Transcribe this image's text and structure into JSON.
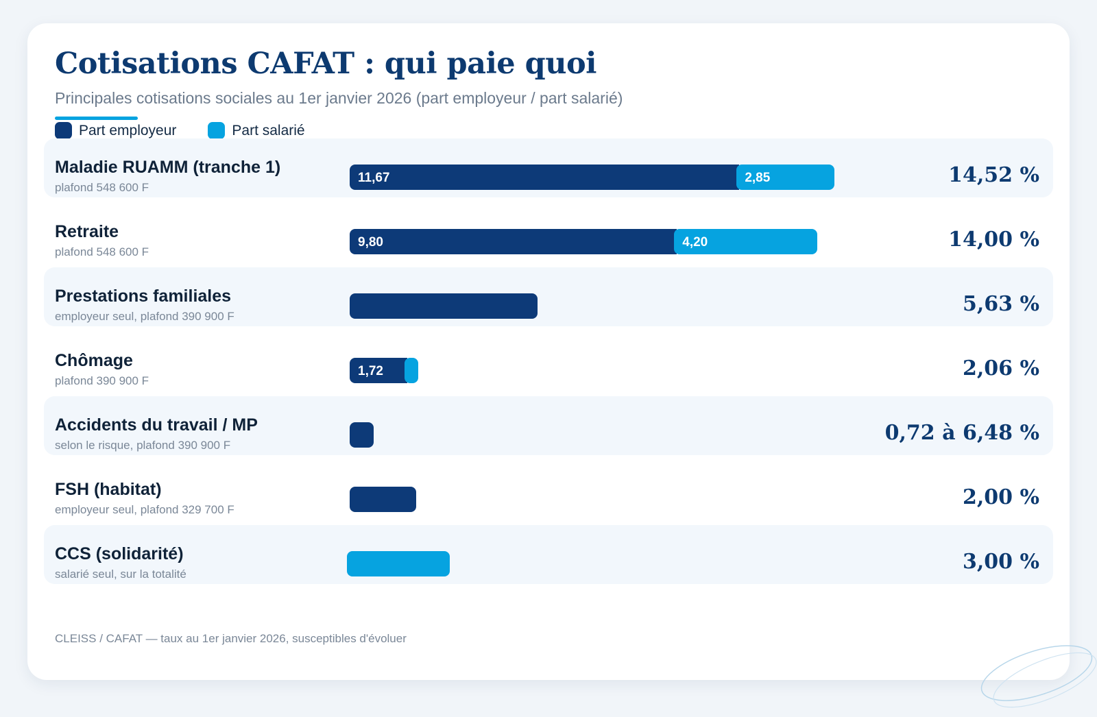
{
  "title": "Cotisations CAFAT : qui paie quoi",
  "subtitle": "Principales cotisations sociales au 1er janvier 2026 (part employeur / part salarié)",
  "legend": [
    {
      "label": "Part employeur",
      "color": "#0d3a78"
    },
    {
      "label": "Part salarié",
      "color": "#06a3e0"
    }
  ],
  "colors": {
    "employer": "#0d3a78",
    "employee": "#06a3e0",
    "title": "#0d3a70"
  },
  "chart_data": {
    "type": "bar",
    "orientation": "horizontal",
    "stacked": true,
    "legend": "top-left",
    "unit": "%",
    "categories": [
      "Maladie RUAMM (tranche 1)",
      "Retraite",
      "Prestations familiales",
      "Chômage",
      "Accidents du travail / MP",
      "FSH (habitat)",
      "CCS (solidarité)"
    ],
    "notes": [
      "plafond 548 600 F",
      "plafond 548 600 F",
      "employeur seul, plafond 390 900 F",
      "plafond 390 900 F",
      "selon le risque, plafond 390 900 F",
      "employeur seul, plafond 329 700 F",
      "salarié seul, sur la totalité"
    ],
    "series": [
      {
        "name": "Part employeur",
        "values": [
          11.67,
          9.8,
          5.63,
          1.72,
          0.72,
          2.0,
          0
        ]
      },
      {
        "name": "Part salarié",
        "values": [
          2.85,
          4.2,
          0,
          0.34,
          0,
          0,
          3.0
        ]
      }
    ],
    "segment_labels": [
      [
        "11,67",
        "2,85"
      ],
      [
        "9,80",
        "4,20"
      ],
      [
        "",
        ""
      ],
      [
        "1,72",
        ""
      ],
      [
        "",
        ""
      ],
      [
        "",
        ""
      ],
      [
        "",
        ""
      ]
    ],
    "totals": [
      "14,52 %",
      "14,00 %",
      "5,63 %",
      "2,06 %",
      "0,72 à 6,48 %",
      "2,00 %",
      "3,00 %"
    ],
    "xlim": [
      0,
      14.52
    ]
  },
  "source": "CLEISS / CAFAT — taux au 1er janvier 2026, susceptibles d'évoluer"
}
